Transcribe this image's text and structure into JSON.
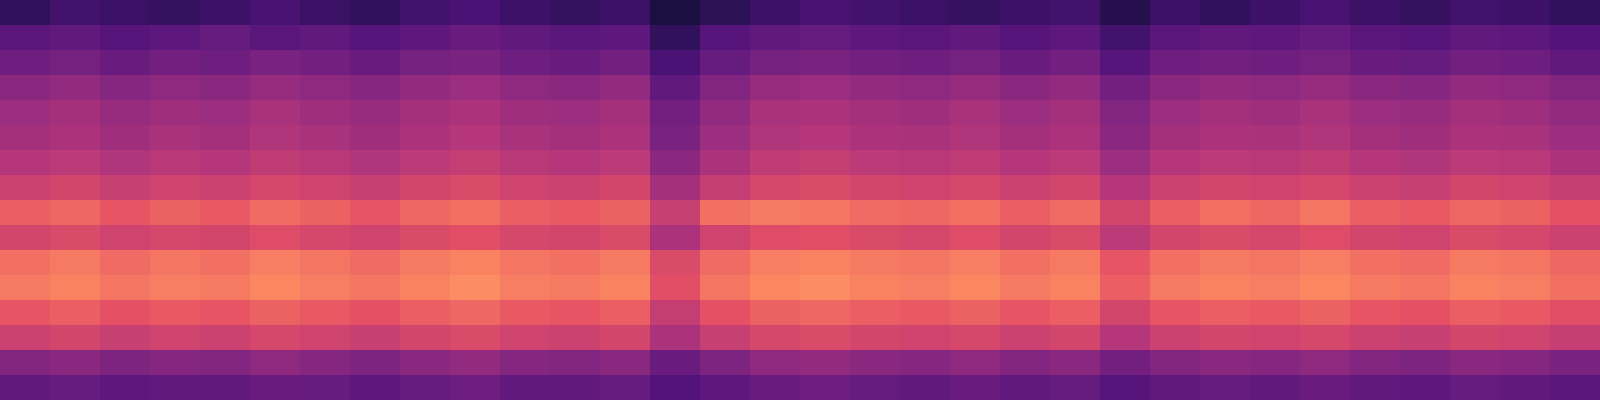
{
  "chart_data": {
    "type": "heatmap",
    "xlim": [
      0,
      32
    ],
    "ylim": [
      0,
      16
    ],
    "clim": [
      0,
      100
    ],
    "tick_labels": false,
    "cells": [
      [
        18,
        22,
        20,
        19,
        21,
        23,
        20,
        18,
        22,
        24,
        21,
        19,
        20,
        12,
        17,
        21,
        23,
        22,
        20,
        19,
        21,
        22,
        15,
        20,
        18,
        21,
        23,
        20,
        19,
        22,
        21,
        18
      ],
      [
        28,
        30,
        27,
        29,
        31,
        28,
        30,
        27,
        29,
        32,
        30,
        28,
        29,
        18,
        27,
        30,
        31,
        29,
        28,
        30,
        27,
        29,
        22,
        28,
        30,
        29,
        31,
        28,
        27,
        30,
        29,
        26
      ],
      [
        33,
        35,
        32,
        34,
        33,
        36,
        34,
        32,
        35,
        36,
        33,
        32,
        34,
        24,
        31,
        35,
        36,
        34,
        33,
        35,
        32,
        34,
        27,
        33,
        34,
        33,
        35,
        32,
        31,
        34,
        33,
        30
      ],
      [
        40,
        42,
        39,
        41,
        40,
        43,
        41,
        39,
        42,
        44,
        41,
        40,
        42,
        30,
        38,
        43,
        44,
        42,
        41,
        43,
        40,
        42,
        34,
        40,
        42,
        41,
        43,
        40,
        39,
        42,
        41,
        38
      ],
      [
        44,
        46,
        43,
        45,
        44,
        47,
        45,
        43,
        46,
        48,
        45,
        44,
        46,
        34,
        42,
        47,
        48,
        46,
        45,
        47,
        44,
        46,
        38,
        44,
        46,
        45,
        47,
        44,
        43,
        46,
        45,
        42
      ],
      [
        46,
        48,
        45,
        47,
        46,
        49,
        47,
        45,
        48,
        50,
        47,
        46,
        48,
        36,
        44,
        49,
        50,
        48,
        47,
        49,
        46,
        48,
        40,
        46,
        48,
        47,
        49,
        46,
        45,
        48,
        47,
        44
      ],
      [
        50,
        52,
        49,
        51,
        50,
        53,
        51,
        49,
        52,
        54,
        51,
        50,
        52,
        40,
        48,
        53,
        54,
        52,
        51,
        53,
        50,
        52,
        44,
        50,
        52,
        51,
        53,
        50,
        49,
        52,
        51,
        48
      ],
      [
        56,
        58,
        55,
        57,
        56,
        59,
        57,
        55,
        58,
        60,
        57,
        56,
        58,
        46,
        54,
        59,
        60,
        58,
        57,
        59,
        56,
        58,
        50,
        56,
        58,
        57,
        59,
        56,
        55,
        58,
        57,
        54
      ],
      [
        66,
        68,
        64,
        67,
        65,
        69,
        67,
        64,
        68,
        70,
        66,
        65,
        67,
        55,
        70,
        72,
        71,
        69,
        68,
        70,
        66,
        69,
        58,
        66,
        70,
        68,
        71,
        66,
        65,
        68,
        67,
        63
      ],
      [
        58,
        60,
        57,
        59,
        58,
        61,
        59,
        57,
        60,
        62,
        59,
        58,
        60,
        48,
        57,
        61,
        62,
        60,
        59,
        61,
        58,
        60,
        52,
        58,
        60,
        59,
        61,
        58,
        57,
        60,
        59,
        56
      ],
      [
        70,
        72,
        69,
        71,
        70,
        73,
        71,
        69,
        72,
        74,
        71,
        70,
        72,
        60,
        69,
        73,
        74,
        72,
        71,
        73,
        70,
        72,
        64,
        70,
        72,
        71,
        73,
        70,
        69,
        72,
        71,
        68
      ],
      [
        72,
        74,
        71,
        73,
        72,
        75,
        73,
        71,
        74,
        76,
        73,
        72,
        74,
        62,
        71,
        75,
        76,
        74,
        73,
        75,
        72,
        74,
        66,
        72,
        74,
        73,
        75,
        72,
        71,
        74,
        73,
        70
      ],
      [
        64,
        66,
        63,
        65,
        64,
        67,
        65,
        63,
        66,
        68,
        65,
        64,
        66,
        54,
        63,
        67,
        68,
        66,
        65,
        67,
        64,
        66,
        58,
        64,
        66,
        65,
        67,
        64,
        63,
        66,
        65,
        62
      ],
      [
        56,
        58,
        55,
        57,
        56,
        59,
        57,
        55,
        58,
        60,
        57,
        56,
        58,
        48,
        55,
        59,
        60,
        58,
        57,
        59,
        56,
        58,
        50,
        56,
        58,
        57,
        59,
        56,
        55,
        58,
        57,
        54
      ],
      [
        38,
        40,
        37,
        39,
        38,
        41,
        39,
        37,
        40,
        42,
        39,
        38,
        40,
        32,
        37,
        41,
        42,
        40,
        39,
        41,
        38,
        40,
        34,
        38,
        40,
        39,
        41,
        38,
        37,
        40,
        39,
        36
      ],
      [
        30,
        31,
        29,
        30,
        30,
        32,
        31,
        29,
        31,
        33,
        30,
        30,
        31,
        26,
        29,
        32,
        33,
        31,
        30,
        32,
        30,
        31,
        27,
        30,
        31,
        30,
        32,
        30,
        29,
        31,
        30,
        28
      ]
    ]
  }
}
